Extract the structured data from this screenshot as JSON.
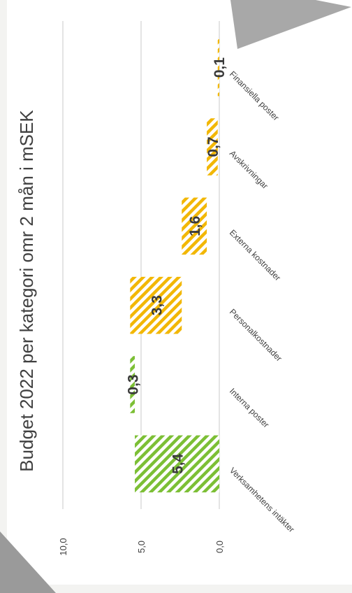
{
  "chart_data": {
    "type": "bar",
    "subtype": "waterfall",
    "orientation": "rotated-90-clockwise",
    "title": "Budget 2022 per kategori omr 2 mån i mSEK",
    "categories": [
      "Verksamhetens intäkter",
      "Interna poster",
      "Personalkostnader",
      "Externa kostnader",
      "Avskrivningar",
      "Finansiella poster"
    ],
    "values": [
      5.4,
      0.3,
      -3.3,
      -1.6,
      -0.7,
      -0.1
    ],
    "value_labels": [
      "5,4",
      "0,3",
      "3,3",
      "1,6",
      "0,7",
      "0,1"
    ],
    "ticks": [
      "0,0",
      "5,0",
      "10,0"
    ],
    "ylim": [
      0,
      10
    ],
    "grid": true,
    "colors": {
      "increase": "#7cbf35",
      "decrease": "#f2b705",
      "gridline": "#c8c8c8",
      "text": "#404040"
    }
  }
}
